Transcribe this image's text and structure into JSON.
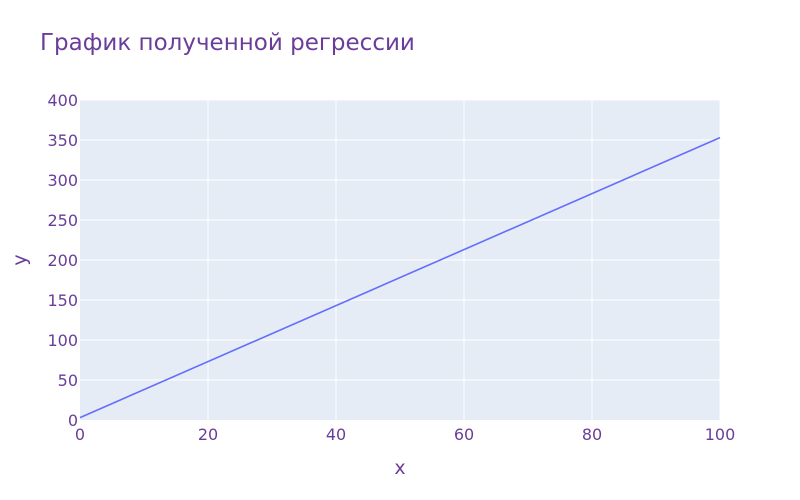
{
  "chart_data": {
    "type": "line",
    "title": "График полученной регрессии",
    "xlabel": "x",
    "ylabel": "y",
    "xlim": [
      0,
      100
    ],
    "ylim": [
      0,
      400
    ],
    "x_ticks": [
      0,
      20,
      40,
      60,
      80,
      100
    ],
    "y_ticks": [
      0,
      50,
      100,
      150,
      200,
      250,
      300,
      350,
      400
    ],
    "grid": true,
    "series": [
      {
        "x": [
          0,
          100
        ],
        "y": [
          3,
          353
        ]
      }
    ]
  },
  "colors": {
    "plot_background": "#e5ecf6",
    "gridline": "#ffffff",
    "line": "#636efa",
    "text": "#6a3d9a"
  }
}
